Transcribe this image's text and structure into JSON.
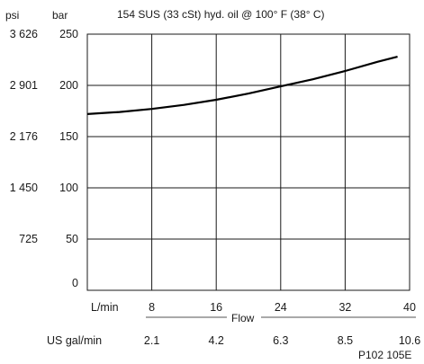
{
  "chart_data": {
    "type": "line",
    "title": "154 SUS (33 cSt) hyd. oil @ 100° F (38° C)",
    "left_axis_unit": "psi",
    "right_axis_unit": "bar",
    "psi_ticks": [
      "3 626",
      "2 901",
      "2 176",
      "1 450",
      "725"
    ],
    "bar_ticks": [
      "250",
      "200",
      "150",
      "100",
      "50",
      "0"
    ],
    "bar_tick_values": [
      250,
      200,
      150,
      100,
      50,
      0
    ],
    "x_unit_lmin": "L/min",
    "x_ticks_lmin": [
      "8",
      "16",
      "24",
      "32",
      "40"
    ],
    "x_tick_values_lmin": [
      8,
      16,
      24,
      32,
      40
    ],
    "xlabel": "Flow",
    "x_unit_gal": "US gal/min",
    "x_ticks_gal": [
      "2.1",
      "4.2",
      "6.3",
      "8.5",
      "10.6"
    ],
    "ylim": [
      0,
      250
    ],
    "xlim": [
      0,
      40
    ],
    "series": [
      {
        "x": [
          0,
          4,
          8,
          12,
          16,
          20,
          24,
          28,
          32,
          36,
          38.5
        ],
        "y": [
          172,
          174,
          177,
          181,
          186,
          192,
          199,
          206,
          214,
          223,
          228
        ]
      }
    ],
    "figure_id": "P102 105E",
    "colors": {
      "grid": "#1a1a1a",
      "curve": "#000000",
      "text": "#1a1a1a"
    }
  }
}
